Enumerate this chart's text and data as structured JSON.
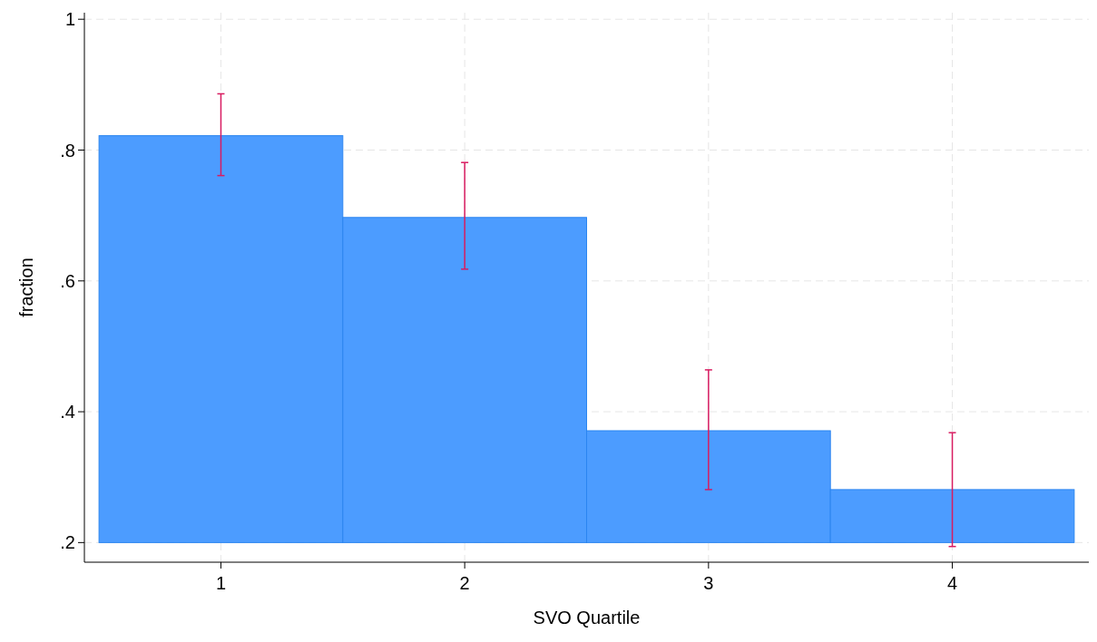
{
  "chart_data": {
    "type": "bar",
    "xlabel": "SVO Quartile",
    "ylabel": "fraction",
    "categories": [
      "1",
      "2",
      "3",
      "4"
    ],
    "base": [
      0.2,
      0.2,
      0.2,
      0.2
    ],
    "values": [
      0.622,
      0.497,
      0.171,
      0.081
    ],
    "errors": [
      [
        0.761,
        0.886
      ],
      [
        0.618,
        0.781
      ],
      [
        0.281,
        0.464
      ],
      [
        0.194,
        0.368
      ]
    ],
    "color": "#4c9cff",
    "ylim": [
      0.17,
      1.01
    ],
    "yticks": [
      {
        "value": 0.2,
        "label": ".2"
      },
      {
        "value": 0.4,
        "label": ".4"
      },
      {
        "value": 0.6,
        "label": ".6"
      },
      {
        "value": 0.8,
        "label": ".8"
      },
      1
    ],
    "grid": true
  }
}
